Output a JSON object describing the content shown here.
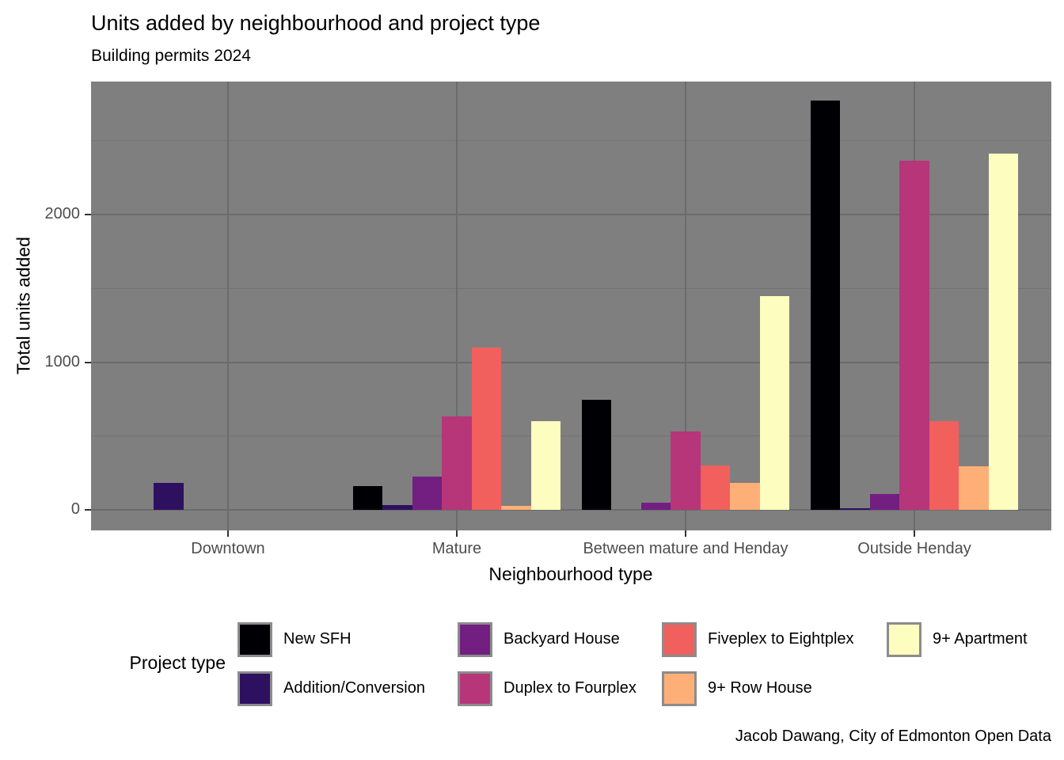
{
  "title": "Units added by neighbourhood and project type",
  "subtitle": "Building permits 2024",
  "caption": "Jacob Dawang, City of Edmonton Open Data",
  "chart_data": {
    "type": "bar",
    "title": "Units added by neighbourhood and project type",
    "subtitle": "Building permits 2024",
    "caption": "Jacob Dawang, City of Edmonton Open Data",
    "xlabel": "Neighbourhood type",
    "ylabel": "Total units added",
    "categories": [
      "Downtown",
      "Mature",
      "Between mature and Henday",
      "Outside Henday"
    ],
    "series": [
      {
        "name": "New SFH",
        "color": "#000004",
        "values": [
          0,
          160,
          745,
          2770
        ]
      },
      {
        "name": "Addition/Conversion",
        "color": "#2D1160",
        "values": [
          180,
          30,
          0,
          10
        ]
      },
      {
        "name": "Backyard House",
        "color": "#721F81",
        "values": [
          0,
          225,
          50,
          105
        ]
      },
      {
        "name": "Duplex to Fourplex",
        "color": "#B63679",
        "values": [
          0,
          635,
          530,
          2365
        ]
      },
      {
        "name": "Fiveplex to Eightplex",
        "color": "#F1605D",
        "values": [
          0,
          1100,
          300,
          600
        ]
      },
      {
        "name": "9+ Row House",
        "color": "#FEAF77",
        "values": [
          0,
          25,
          180,
          295
        ]
      },
      {
        "name": "9+ Apartment",
        "color": "#FCFDBF",
        "values": [
          0,
          600,
          1450,
          2415
        ]
      }
    ],
    "y_ticks": [
      0,
      1000,
      2000
    ],
    "y_minor_ticks": [
      500,
      1500,
      2500
    ],
    "ylim": [
      0,
      2900
    ],
    "legend_title": "Project type",
    "legend_position": "bottom",
    "grid": true,
    "colors": {
      "panel_background": "#7F7F7F",
      "grid_major": "#6B6B6B",
      "grid_minor": "#747474",
      "axis_text": "#4D4D4D",
      "text": "#000000",
      "legend_key_border": "#8C8C8C",
      "background": "#FFFFFF"
    }
  }
}
